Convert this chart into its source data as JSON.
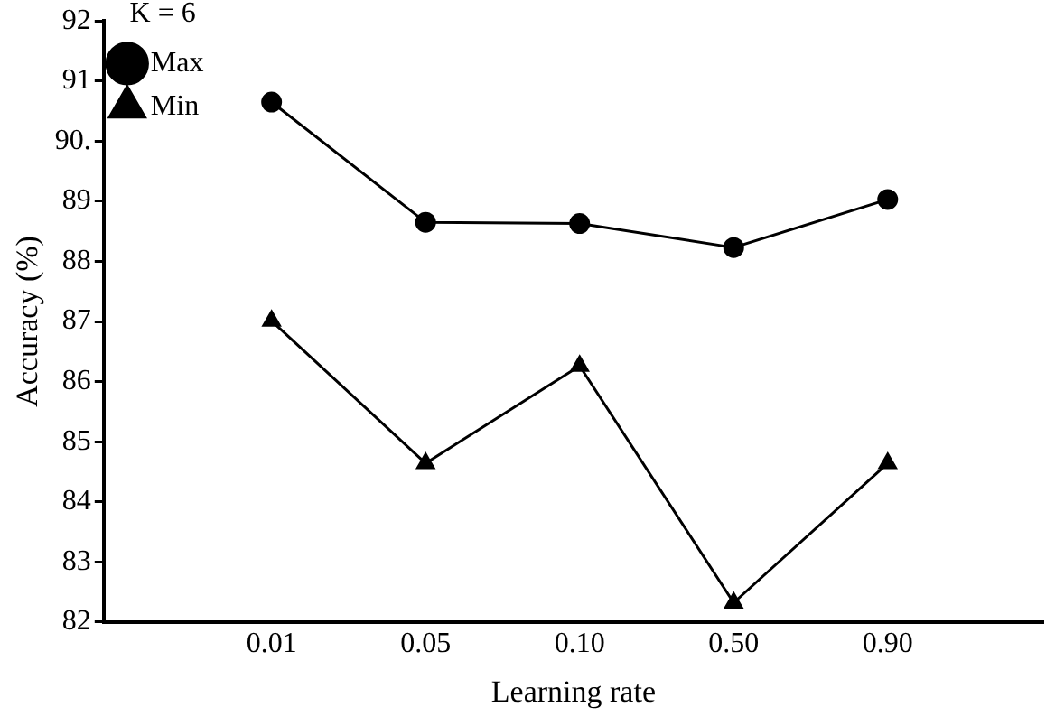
{
  "chart_data": {
    "type": "line",
    "xlabel": "Learning rate",
    "ylabel": "Accuracy (%)",
    "legend_title": "K = 6",
    "legend": "top left",
    "categories": [
      "0.01",
      "0.05",
      "0.10",
      "0.50",
      "0.90"
    ],
    "ylim": [
      82,
      92
    ],
    "yticks": [
      82,
      83,
      84,
      85,
      86,
      87,
      88,
      89,
      {
        "value": 90,
        "label": "90."
      },
      91,
      92
    ],
    "grid": false,
    "series": [
      {
        "name": "Max",
        "color": "#000000",
        "marker": "circle",
        "values": [
          90.65,
          88.65,
          88.63,
          88.23,
          89.03
        ]
      },
      {
        "name": "Min",
        "color": "#000000",
        "marker": "triangle",
        "values": [
          87.01,
          84.64,
          86.26,
          82.32,
          84.64
        ]
      }
    ]
  }
}
